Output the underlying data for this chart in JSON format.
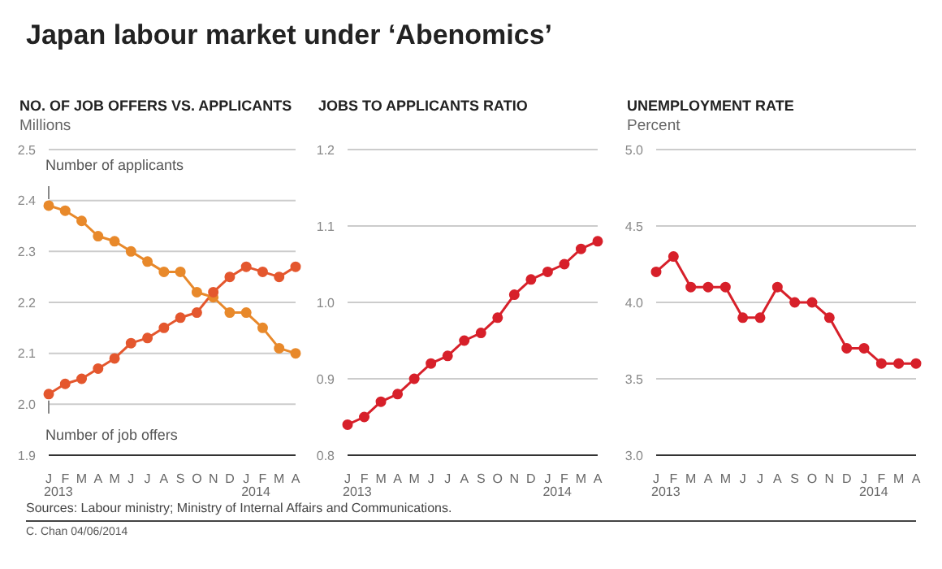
{
  "chart_data": [
    {
      "type": "other",
      "title": "Japan labour market under ‘Abenomics’",
      "annotations": [
        "Sources: Labour ministry; Ministry of Internal Affairs and Communications.",
        "C. Chan 04/06/2014"
      ]
    },
    {
      "type": "line",
      "title": "NO. OF JOB OFFERS VS. APPLICANTS",
      "ylabel": "Millions",
      "categories": [
        "J",
        "F",
        "M",
        "A",
        "M",
        "J",
        "J",
        "A",
        "S",
        "O",
        "N",
        "D",
        "J",
        "F",
        "M",
        "A"
      ],
      "series": [
        {
          "name": "Number of applicants",
          "color": "#e8892b",
          "values": [
            2.39,
            2.38,
            2.36,
            2.33,
            2.32,
            2.3,
            2.28,
            2.26,
            2.26,
            2.22,
            2.21,
            2.18,
            2.18,
            2.15,
            2.11,
            2.1
          ]
        },
        {
          "name": "Number of job offers",
          "color": "#e4572e",
          "values": [
            2.02,
            2.04,
            2.05,
            2.07,
            2.09,
            2.12,
            2.13,
            2.15,
            2.17,
            2.18,
            2.22,
            2.25,
            2.27,
            2.26,
            2.25,
            2.27
          ]
        }
      ],
      "ylim": [
        1.9,
        2.5
      ],
      "yticks": [
        {
          "value": 1.9,
          "label": "1.9"
        },
        {
          "value": 2.0,
          "label": "2.0"
        },
        {
          "value": 2.1,
          "label": "2.1"
        },
        {
          "value": 2.2,
          "label": "2.2"
        },
        {
          "value": 2.3,
          "label": "2.3"
        },
        {
          "value": 2.4,
          "label": "2.4"
        },
        {
          "value": 2.5,
          "label": "2.5"
        }
      ],
      "grid": "y",
      "legend": false,
      "marker": "circle",
      "line_style": "solid",
      "annotations": [
        "2013",
        "2014"
      ]
    },
    {
      "type": "line",
      "title": "JOBS TO APPLICANTS RATIO",
      "categories": [
        "J",
        "F",
        "M",
        "A",
        "M",
        "J",
        "J",
        "A",
        "S",
        "O",
        "N",
        "D",
        "J",
        "F",
        "M",
        "A"
      ],
      "series": [
        {
          "color": "#d7202a",
          "values": [
            0.84,
            0.85,
            0.87,
            0.88,
            0.9,
            0.92,
            0.93,
            0.95,
            0.96,
            0.98,
            1.01,
            1.03,
            1.04,
            1.05,
            1.07,
            1.08
          ]
        }
      ],
      "ylim": [
        0.8,
        1.2
      ],
      "yticks": [
        {
          "value": 0.8,
          "label": "0.8"
        },
        {
          "value": 0.9,
          "label": "0.9"
        },
        {
          "value": 1.0,
          "label": "1.0"
        },
        {
          "value": 1.1,
          "label": "1.1"
        },
        {
          "value": 1.2,
          "label": "1.2"
        }
      ],
      "grid": "y",
      "legend": false,
      "marker": "circle",
      "line_style": "solid",
      "annotations": [
        "2013",
        "2014"
      ]
    },
    {
      "type": "line",
      "title": "UNEMPLOYMENT RATE",
      "ylabel": "Percent",
      "categories": [
        "J",
        "F",
        "M",
        "A",
        "M",
        "J",
        "J",
        "A",
        "S",
        "O",
        "N",
        "D",
        "J",
        "F",
        "M",
        "A"
      ],
      "series": [
        {
          "color": "#d7202a",
          "values": [
            4.2,
            4.3,
            4.1,
            4.1,
            4.1,
            3.9,
            3.9,
            4.1,
            4.0,
            4.0,
            3.9,
            3.7,
            3.7,
            3.6,
            3.6,
            3.6
          ]
        }
      ],
      "ylim": [
        3.0,
        5.0
      ],
      "yticks": [
        {
          "value": 3.0,
          "label": "3.0"
        },
        {
          "value": 3.5,
          "label": "3.5"
        },
        {
          "value": 4.0,
          "label": "4.0"
        },
        {
          "value": 4.5,
          "label": "4.5"
        },
        {
          "value": 5.0,
          "label": "5.0"
        }
      ],
      "grid": "y",
      "legend": false,
      "marker": "circle",
      "line_style": "solid",
      "annotations": [
        "2013",
        "2014"
      ]
    }
  ]
}
